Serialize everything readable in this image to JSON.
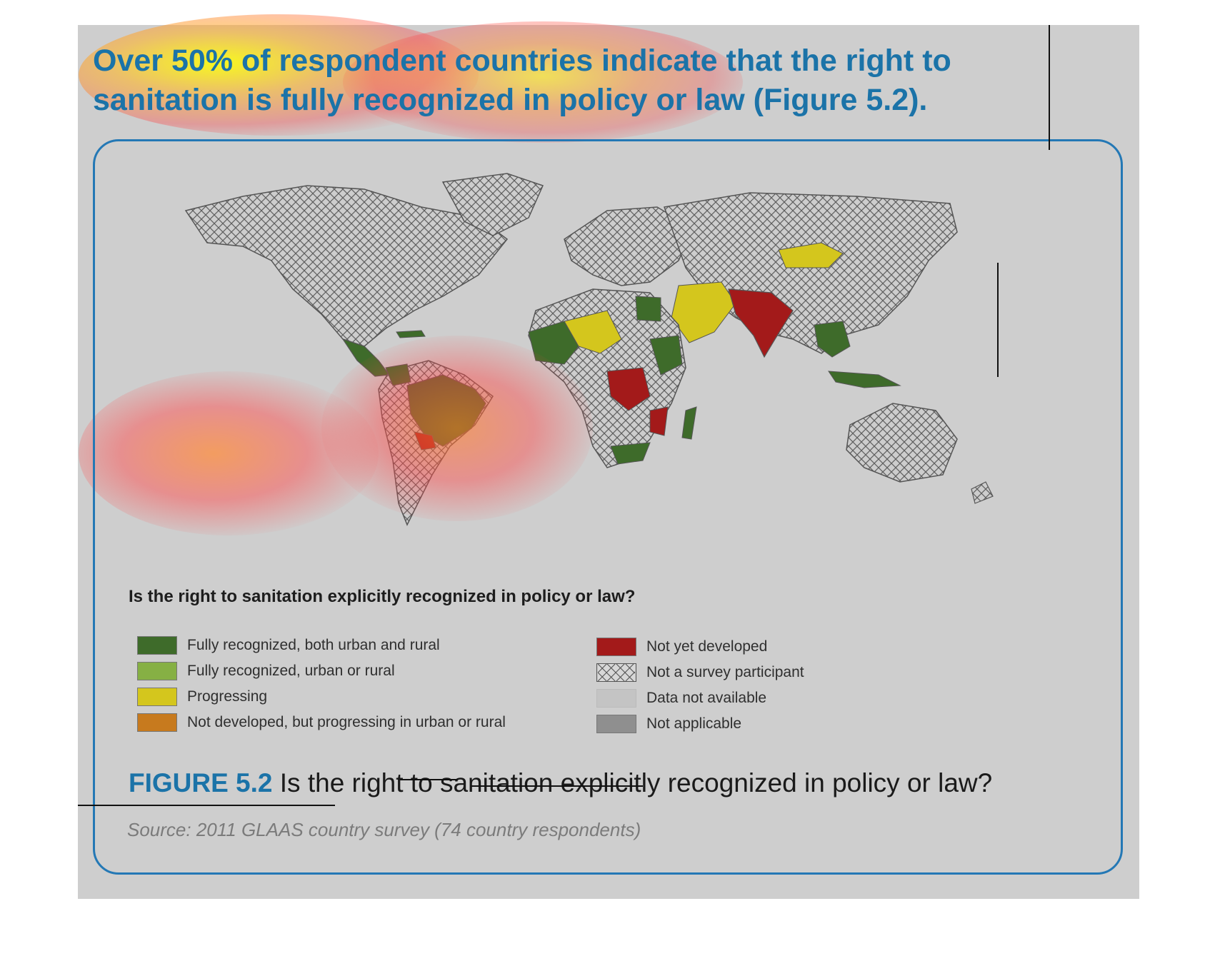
{
  "headline": "Over 50% of respondent countries indicate that the right to sanitation is fully recognized in policy or law (Figure 5.2).",
  "legend": {
    "title": "Is the right to sanitation explicitly recognized in policy or law?",
    "left_items": [
      {
        "label": "Fully recognized, both urban and rural",
        "color": "#3e6b2a"
      },
      {
        "label": "Fully recognized, urban or rural",
        "color": "#86b044"
      },
      {
        "label": "Progressing",
        "color": "#d4c61d"
      },
      {
        "label": "Not developed, but progressing in urban or rural",
        "color": "#c77a1e"
      }
    ],
    "right_items": [
      {
        "label": "Not yet developed",
        "color": "#a31a1a"
      },
      {
        "label": "Not a survey participant",
        "color": "hatch"
      },
      {
        "label": "Data not available",
        "color": "#c4c4c4"
      },
      {
        "label": "Not applicable",
        "color": "#8f8f8f"
      }
    ]
  },
  "caption": {
    "figure_label": "FIGURE 5.2",
    "text": "Is the right to sanitation explicitly recognized in policy or law?"
  },
  "source": "Source: 2011 GLAAS country survey (74 country respondents)",
  "colors": {
    "accent": "#1b73a8",
    "panel": "#cecece",
    "frame": "#2478b5"
  }
}
